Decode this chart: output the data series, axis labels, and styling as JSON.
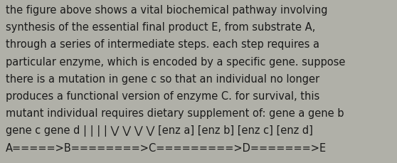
{
  "background_color": "#b0b0a8",
  "text_color": "#1a1a1a",
  "font_size": 10.5,
  "font_family": "DejaVu Sans",
  "lines": [
    "the figure above shows a vital biochemical pathway involving",
    "synthesis of the essential final product E, from substrate A,",
    "through a series of intermediate steps. each step requires a",
    "particular enzyme, which is encoded by a specific gene. suppose",
    "there is a mutation in gene c so that an individual no longer",
    "produces a functional version of enzyme C. for survival, this",
    "mutant individual requires dietary supplement of: gene a gene b",
    "gene c gene d | | | | ⋁ ⋁ ⋁ ⋁ [enz a] [enz b] [enz c] [enz d]",
    "A=====>B========>C=========>D=======>E"
  ]
}
